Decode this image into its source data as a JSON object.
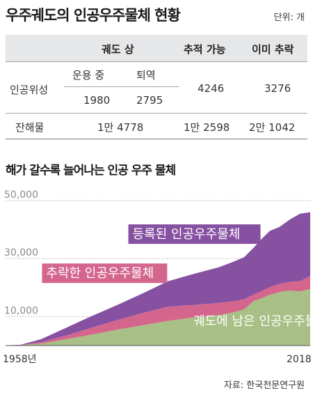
{
  "title": "우주궤도의 인공우주물체 현황",
  "unit": "단위: 개",
  "table": {
    "header": {
      "in_orbit": "궤도 상",
      "trackable": "추적 가능",
      "fallen": "이미 추락"
    },
    "satellite": {
      "label": "인공위성",
      "operating_label": "운용 중",
      "retired_label": "퇴역",
      "operating": "1980",
      "retired": "2795",
      "trackable": "4246",
      "fallen": "3276"
    },
    "debris": {
      "label": "잔해물",
      "in_orbit": "1만 4778",
      "trackable": "1만 2598",
      "fallen": "2만 1042"
    }
  },
  "subtitle": "해가 갈수록 늘어나는 인공 우주 물체",
  "source": "자료: 한국천문연구원",
  "chart_data": {
    "type": "area",
    "stacked": true,
    "x_start_label": "1958년",
    "x_end_label": "2018",
    "xlim": [
      1958,
      2018
    ],
    "ylim": [
      0,
      50000
    ],
    "yticks": [
      "50,000",
      "30,000",
      "10,000"
    ],
    "ytick_values": [
      50000,
      30000,
      10000
    ],
    "grid": true,
    "x": [
      1958,
      1961,
      1965,
      1970,
      1975,
      1980,
      1985,
      1990,
      1995,
      2000,
      2003,
      2005,
      2007,
      2008,
      2010,
      2012,
      2014,
      2016,
      2018
    ],
    "series": [
      {
        "name": "궤도에 남은 인공우주물체",
        "color": "#a8bf86",
        "values": [
          0,
          150,
          700,
          2200,
          3800,
          5500,
          7000,
          8500,
          9700,
          10500,
          11500,
          12500,
          15500,
          16000,
          17500,
          18500,
          19000,
          18700,
          19500
        ]
      },
      {
        "name": "추락한 인공우주물체",
        "color": "#d4668e",
        "values": [
          0,
          50,
          500,
          1300,
          2400,
          3300,
          4200,
          4900,
          4300,
          4200,
          3800,
          3500,
          2200,
          2500,
          2600,
          2800,
          3000,
          3500,
          4500
        ]
      },
      {
        "name": "등록된 인공우주물체",
        "color": "#8751a2",
        "values": [
          0,
          100,
          1000,
          2700,
          4000,
          5200,
          6800,
          8800,
          10700,
          12300,
          13700,
          14500,
          16300,
          17500,
          19400,
          19700,
          21500,
          23300,
          22000
        ]
      }
    ]
  }
}
